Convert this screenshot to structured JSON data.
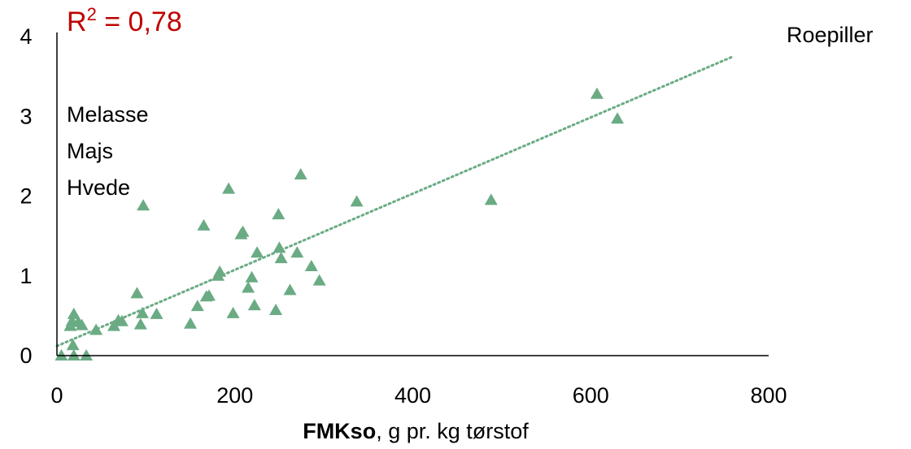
{
  "chart_data": {
    "type": "scatter",
    "xlabel_bold": "FMKso",
    "xlabel_rest": ", g pr. kg tørstof",
    "xlim": [
      0,
      800
    ],
    "ylim": [
      0,
      4
    ],
    "x_ticks": [
      "0",
      "200",
      "400",
      "600",
      "800"
    ],
    "y_ticks": [
      "0",
      "1",
      "2",
      "3",
      "4"
    ],
    "r2": {
      "prefix": "R",
      "sup": "2",
      "suffix": " = 0,78"
    },
    "annotations": [
      "Roepiller",
      "Melasse",
      "Majs",
      "Hvede"
    ],
    "marker_color": "#6aab84",
    "trendline": {
      "x_start": 0,
      "y_start": 0.12,
      "x_end": 760,
      "y_end": 3.75,
      "color": "#6aab84",
      "style": "dotted"
    },
    "points": [
      [
        5,
        0.0
      ],
      [
        19,
        0.0
      ],
      [
        33,
        0.0
      ],
      [
        18,
        0.13
      ],
      [
        15,
        0.37
      ],
      [
        19,
        0.52
      ],
      [
        17,
        0.43
      ],
      [
        24,
        0.42
      ],
      [
        28,
        0.38
      ],
      [
        44,
        0.32
      ],
      [
        64,
        0.37
      ],
      [
        69,
        0.44
      ],
      [
        73,
        0.43
      ],
      [
        94,
        0.39
      ],
      [
        96,
        0.53
      ],
      [
        112,
        0.52
      ],
      [
        150,
        0.4
      ],
      [
        158,
        0.62
      ],
      [
        168,
        0.74
      ],
      [
        171,
        0.75
      ],
      [
        181,
        1.0
      ],
      [
        183,
        1.05
      ],
      [
        90,
        0.78
      ],
      [
        97,
        1.88
      ],
      [
        165,
        1.63
      ],
      [
        193,
        2.09
      ],
      [
        198,
        0.53
      ],
      [
        207,
        1.52
      ],
      [
        209,
        1.55
      ],
      [
        215,
        0.85
      ],
      [
        219,
        0.98
      ],
      [
        222,
        0.63
      ],
      [
        225,
        1.29
      ],
      [
        246,
        0.57
      ],
      [
        249,
        1.77
      ],
      [
        250,
        1.35
      ],
      [
        252,
        1.22
      ],
      [
        262,
        0.82
      ],
      [
        270,
        1.29
      ],
      [
        274,
        2.27
      ],
      [
        286,
        1.12
      ],
      [
        295,
        0.94
      ],
      [
        337,
        1.93
      ],
      [
        488,
        1.95
      ],
      [
        607,
        3.28
      ],
      [
        630,
        2.97
      ]
    ]
  }
}
